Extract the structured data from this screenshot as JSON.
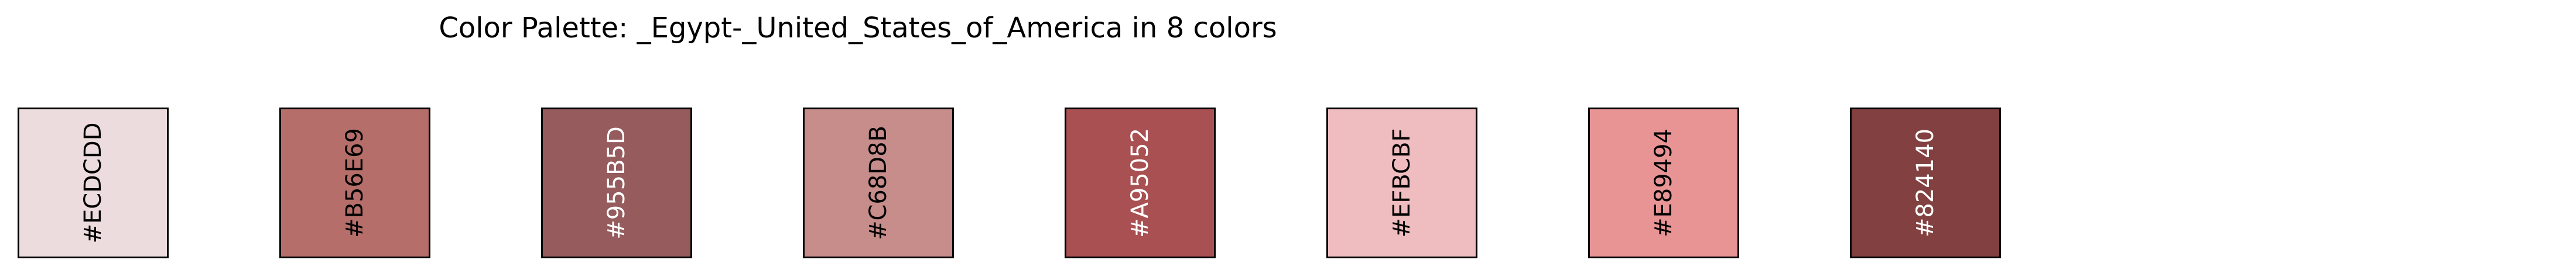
{
  "title": "Color Palette: _Egypt-_United_States_of_America in 8 colors",
  "swatches": [
    {
      "label": "#ECDCDD",
      "color": "#ECDCDD",
      "text_color": "#000000"
    },
    {
      "label": "#B56E69",
      "color": "#B56E69",
      "text_color": "#000000"
    },
    {
      "label": "#955B5D",
      "color": "#955B5D",
      "text_color": "#ffffff"
    },
    {
      "label": "#C68D8B",
      "color": "#C68D8B",
      "text_color": "#000000"
    },
    {
      "label": "#A95052",
      "color": "#A95052",
      "text_color": "#ffffff"
    },
    {
      "label": "#EFBCBF",
      "color": "#EFBCBF",
      "text_color": "#000000"
    },
    {
      "label": "#E89494",
      "color": "#E89494",
      "text_color": "#000000"
    },
    {
      "label": "#824140",
      "color": "#824140",
      "text_color": "#ffffff"
    }
  ]
}
